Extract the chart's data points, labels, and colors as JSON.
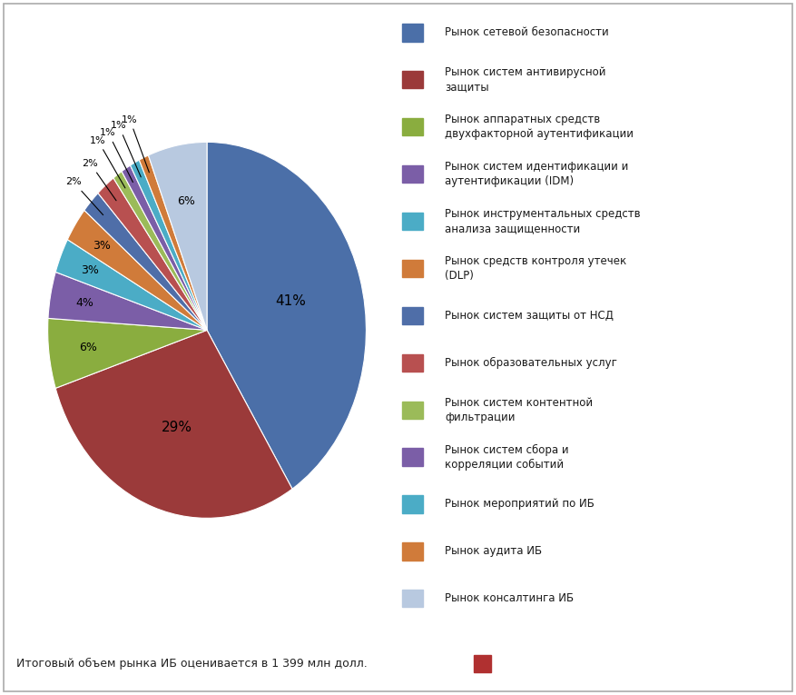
{
  "slices": [
    {
      "label": "Рынок сетевой безопасности",
      "value": 41,
      "color": "#4B6FA8"
    },
    {
      "label": "Рынок систем антивирусной\nзащиты",
      "value": 29,
      "color": "#9B3A3A"
    },
    {
      "label": "Рынок аппаратных средств\nдвухфакторной аутентификации",
      "value": 6,
      "color": "#8AAD3F"
    },
    {
      "label": "Рынок систем идентификации и\nаутентификации (IDM)",
      "value": 4,
      "color": "#7B5EA7"
    },
    {
      "label": "Рынок инструментальных средств\nанализа защищенности",
      "value": 3,
      "color": "#4BACC6"
    },
    {
      "label": "Рынок средств контроля утечек\n(DLP)",
      "value": 3,
      "color": "#D07B3A"
    },
    {
      "label": "Рынок систем защиты от НСД",
      "value": 2,
      "color": "#4F6EA8"
    },
    {
      "label": "Рынок образовательных услуг",
      "value": 2,
      "color": "#B85050"
    },
    {
      "label": "Рынок систем контентной\nфильтрации",
      "value": 1,
      "color": "#9BBB59"
    },
    {
      "label": "Рынок систем сбора и\nкорреляции событий",
      "value": 1,
      "color": "#7B5EA7"
    },
    {
      "label": "Рынок мероприятий по ИБ",
      "value": 1,
      "color": "#4BACC6"
    },
    {
      "label": "Рынок аудита ИБ",
      "value": 1,
      "color": "#D07B3A"
    },
    {
      "label": "Рынок консалтинга ИБ",
      "value": 6,
      "color": "#B8C9E0"
    }
  ],
  "footer_text": "Итоговый объем рынка ИБ оценивается в 1 399 млн долл.",
  "footer_rect_color": "#B03030",
  "background_color": "#FFFFFF",
  "border_color": "#AAAAAA"
}
